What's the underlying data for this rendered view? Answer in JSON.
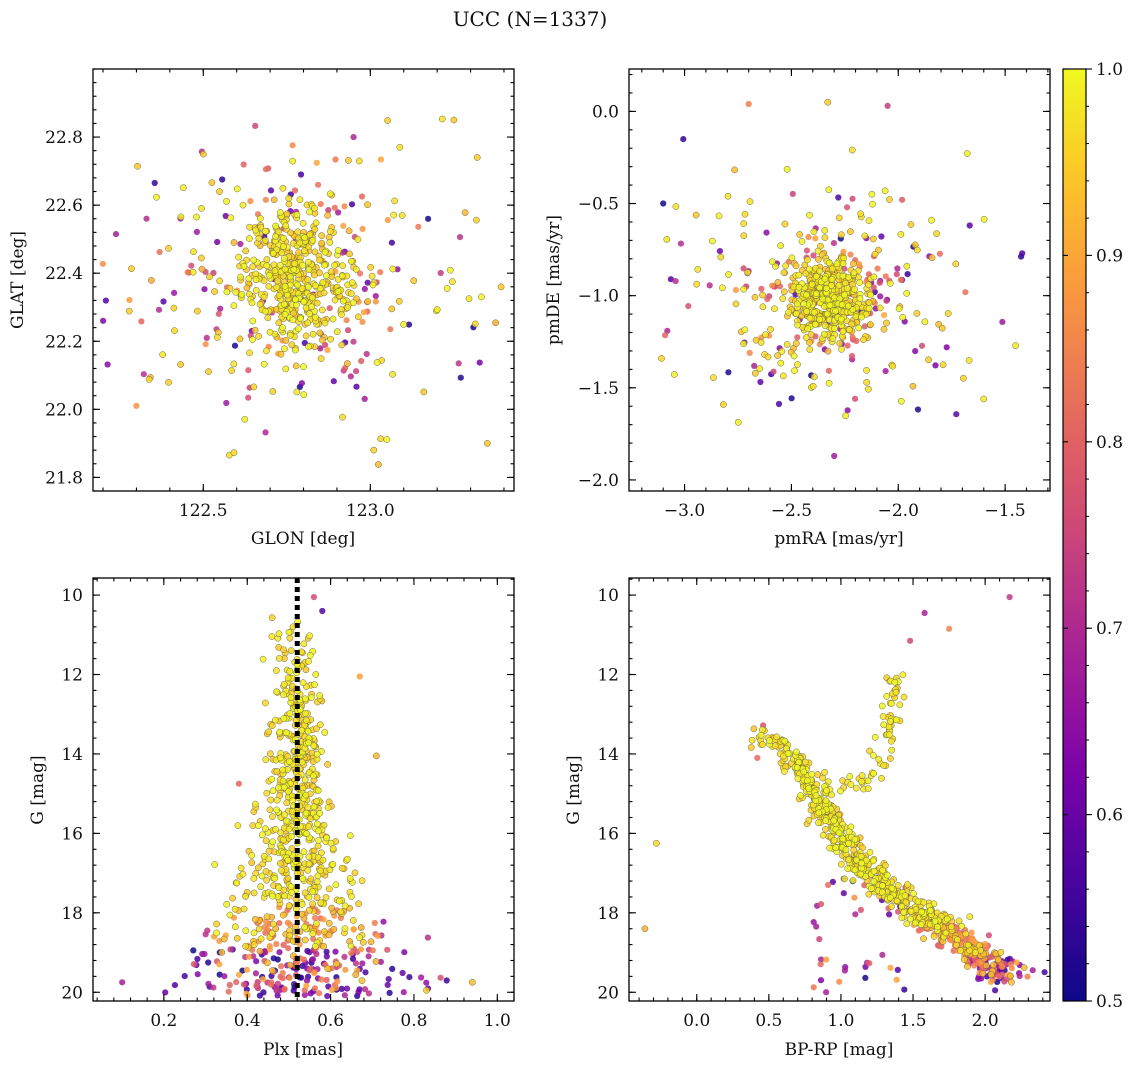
{
  "figure": {
    "title": "UCC (N=1337)"
  },
  "colorbar": {
    "min": 0.5,
    "max": 1.0,
    "ticks": [
      "0.5",
      "0.6",
      "0.7",
      "0.8",
      "0.9",
      "1.0"
    ],
    "tick_values": [
      0.5,
      0.6,
      0.7,
      0.8,
      0.9,
      1.0
    ],
    "colormap": "plasma"
  },
  "chart_data": [
    {
      "type": "scatter",
      "id": "glon-glat",
      "xlabel": "GLON [deg]",
      "ylabel": "GLAT [deg]",
      "xlim": [
        122.17,
        123.43
      ],
      "ylim": [
        21.76,
        23.0
      ],
      "xticks": [
        122.5,
        123.0
      ],
      "xtick_labels": [
        "122.5",
        "123.0"
      ],
      "yticks": [
        21.8,
        22.0,
        22.2,
        22.4,
        22.6,
        22.8
      ],
      "ytick_labels": [
        "21.8",
        "22.0",
        "22.2",
        "22.4",
        "22.6",
        "22.8"
      ],
      "y_inverted": false,
      "cloud": {
        "center": [
          122.78,
          22.39
        ],
        "spread_core": [
          0.09,
          0.11
        ],
        "spread_halo": [
          0.27,
          0.22
        ],
        "n": 700
      },
      "outliers": [
        [
          122.3,
          22.01
        ],
        [
          122.33,
          22.56
        ],
        [
          122.95,
          22.8
        ],
        [
          123.32,
          22.74
        ],
        [
          123.35,
          21.9
        ],
        [
          122.5,
          22.75
        ],
        [
          123.25,
          22.85
        ]
      ]
    },
    {
      "type": "scatter",
      "id": "pm",
      "xlabel": "pmRA [mas/yr]",
      "ylabel": "pmDE [mas/yr]",
      "xlim": [
        -3.26,
        -1.29
      ],
      "ylim": [
        -2.06,
        0.23
      ],
      "xticks": [
        -3.0,
        -2.5,
        -2.0,
        -1.5
      ],
      "xtick_labels": [
        "−3.0",
        "−2.5",
        "−2.0",
        "−1.5"
      ],
      "yticks": [
        -2.0,
        -1.5,
        -1.0,
        -0.5,
        0.0
      ],
      "ytick_labels": [
        "−2.0",
        "−1.5",
        "−1.0",
        "−0.5",
        "0.0"
      ],
      "y_inverted": false,
      "cloud": {
        "center": [
          -2.33,
          -1.01
        ],
        "spread_core": [
          0.1,
          0.12
        ],
        "spread_halo": [
          0.35,
          0.3
        ],
        "n": 700
      },
      "outliers": [
        [
          -3.1,
          -0.5
        ],
        [
          -2.7,
          0.04
        ],
        [
          -2.33,
          0.05
        ],
        [
          -2.05,
          0.03
        ],
        [
          -1.42,
          -0.77
        ],
        [
          -2.3,
          -1.87
        ],
        [
          -1.6,
          -1.56
        ]
      ]
    },
    {
      "type": "scatter",
      "id": "plx-g",
      "xlabel": "Plx [mas]",
      "ylabel": "G [mag]",
      "xlim": [
        0.03,
        1.04
      ],
      "ylim": [
        20.22,
        9.57
      ],
      "xticks": [
        0.2,
        0.4,
        0.6,
        0.8,
        1.0
      ],
      "xtick_labels": [
        "0.2",
        "0.4",
        "0.6",
        "0.8",
        "1.0"
      ],
      "yticks": [
        10,
        12,
        14,
        16,
        18,
        20
      ],
      "ytick_labels": [
        "10",
        "12",
        "14",
        "16",
        "18",
        "20"
      ],
      "y_inverted": true,
      "vline": {
        "x": 0.52,
        "style": "dotted"
      },
      "outliers": [
        [
          0.56,
          10.05
        ],
        [
          0.58,
          10.4
        ],
        [
          0.67,
          12.05
        ],
        [
          0.1,
          19.75
        ],
        [
          0.94,
          19.75
        ],
        [
          0.83,
          19.95
        ],
        [
          0.38,
          14.75
        ],
        [
          0.71,
          14.05
        ]
      ]
    },
    {
      "type": "scatter",
      "id": "cmd",
      "xlabel": "BP-RP [mag]",
      "ylabel": "G [mag]",
      "xlim": [
        -0.47,
        2.45
      ],
      "ylim": [
        20.22,
        9.57
      ],
      "xticks": [
        0.0,
        0.5,
        1.0,
        1.5,
        2.0
      ],
      "xtick_labels": [
        "0.0",
        "0.5",
        "1.0",
        "1.5",
        "2.0"
      ],
      "yticks": [
        10,
        12,
        14,
        16,
        18,
        20
      ],
      "ytick_labels": [
        "10",
        "12",
        "14",
        "16",
        "18",
        "20"
      ],
      "y_inverted": true,
      "main_sequence": [
        [
          0.4,
          13.3
        ],
        [
          0.65,
          14.0
        ],
        [
          0.8,
          14.8
        ],
        [
          0.9,
          15.6
        ],
        [
          1.05,
          16.4
        ],
        [
          1.25,
          17.2
        ],
        [
          1.5,
          17.9
        ],
        [
          1.75,
          18.5
        ],
        [
          1.95,
          19.1
        ],
        [
          2.15,
          19.6
        ]
      ],
      "giant_branch": [
        [
          0.95,
          14.8
        ],
        [
          1.15,
          14.75
        ],
        [
          1.3,
          14.2
        ],
        [
          1.33,
          13.4
        ],
        [
          1.35,
          12.6
        ],
        [
          1.4,
          12.0
        ]
      ],
      "outliers": [
        [
          2.17,
          10.05
        ],
        [
          1.58,
          10.45
        ],
        [
          1.75,
          10.85
        ],
        [
          1.48,
          11.15
        ],
        [
          -0.28,
          16.25
        ],
        [
          -0.36,
          18.4
        ],
        [
          0.42,
          14.1
        ],
        [
          0.46,
          13.28
        ]
      ]
    }
  ]
}
